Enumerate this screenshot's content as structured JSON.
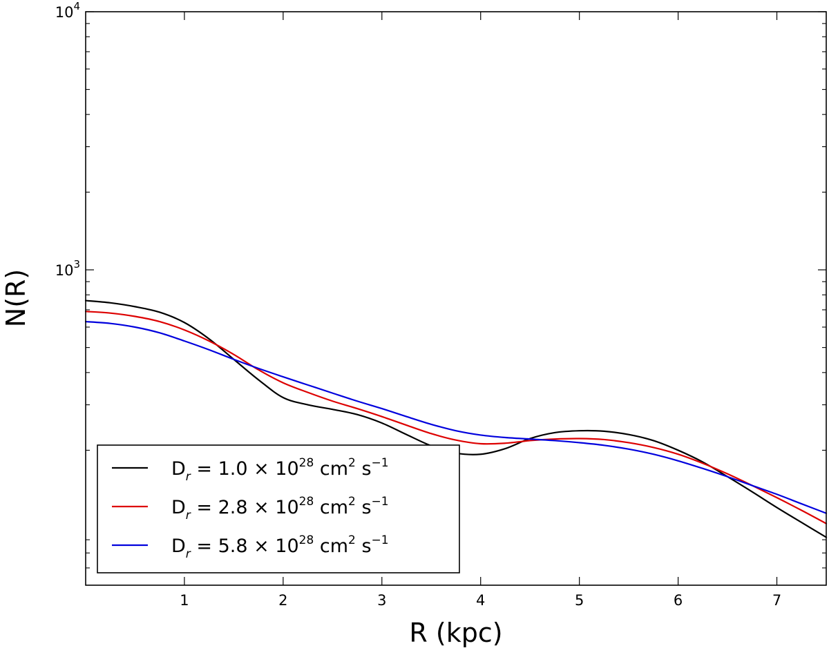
{
  "chart_data": {
    "type": "line",
    "title": "",
    "xlabel": "R (kpc)",
    "ylabel": "N(R)",
    "xlim": [
      0.0,
      7.5
    ],
    "ylim": [
      60,
      10000
    ],
    "yscale": "log",
    "grid": false,
    "legend_position": "lower-left",
    "x_ticks": [
      1,
      2,
      3,
      4,
      5,
      6,
      7
    ],
    "x_tick_labels": [
      "1",
      "2",
      "3",
      "4",
      "5",
      "6",
      "7"
    ],
    "y_major_ticks": [
      {
        "value": 1000,
        "base": "10",
        "exp": "3"
      },
      {
        "value": 10000,
        "base": "10",
        "exp": "4"
      }
    ],
    "y_minor_ticks": [
      70,
      80,
      90,
      200,
      300,
      400,
      500,
      600,
      700,
      800,
      900,
      2000,
      3000,
      4000,
      5000,
      6000,
      7000,
      8000,
      9000
    ],
    "series": [
      {
        "name": "D_r = 1.0 ×10^28 cm^2 s^-1",
        "label_parts": {
          "value": "1.0",
          "exp": "28"
        },
        "color": "#000000",
        "x": [
          0.0,
          0.25,
          0.5,
          0.75,
          1.0,
          1.25,
          1.5,
          1.75,
          2.0,
          2.25,
          2.5,
          2.75,
          3.0,
          3.25,
          3.5,
          3.75,
          4.0,
          4.25,
          4.5,
          4.75,
          5.0,
          5.25,
          5.5,
          5.75,
          6.0,
          6.25,
          6.5,
          6.75,
          7.0,
          7.25,
          7.5
        ],
        "y": [
          760,
          745,
          720,
          685,
          625,
          540,
          450,
          375,
          320,
          300,
          288,
          275,
          255,
          230,
          208,
          195,
          193,
          203,
          222,
          234,
          238,
          237,
          230,
          218,
          200,
          180,
          158,
          138,
          120,
          105,
          92
        ]
      },
      {
        "name": "D_r = 2.8 ×10^28 cm^2 s^-1",
        "label_parts": {
          "value": "2.8",
          "exp": "28"
        },
        "color": "#dd0000",
        "x": [
          0.0,
          0.25,
          0.5,
          0.75,
          1.0,
          1.25,
          1.5,
          1.75,
          2.0,
          2.25,
          2.5,
          2.75,
          3.0,
          3.25,
          3.5,
          3.75,
          4.0,
          4.25,
          4.5,
          4.75,
          5.0,
          5.25,
          5.5,
          5.75,
          6.0,
          6.25,
          6.5,
          6.75,
          7.0,
          7.25,
          7.5
        ],
        "y": [
          690,
          680,
          660,
          630,
          585,
          530,
          470,
          410,
          365,
          335,
          310,
          290,
          270,
          250,
          232,
          219,
          212,
          213,
          218,
          221,
          222,
          220,
          214,
          205,
          193,
          178,
          162,
          146,
          131,
          117,
          104
        ]
      },
      {
        "name": "D_r = 5.8 ×10^28 cm^2 s^-1",
        "label_parts": {
          "value": "5.8",
          "exp": "28"
        },
        "color": "#0000dd",
        "x": [
          0.0,
          0.25,
          0.5,
          0.75,
          1.0,
          1.25,
          1.5,
          1.75,
          2.0,
          2.25,
          2.5,
          2.75,
          3.0,
          3.25,
          3.5,
          3.75,
          4.0,
          4.25,
          4.5,
          4.75,
          5.0,
          5.25,
          5.5,
          5.75,
          6.0,
          6.25,
          6.5,
          6.75,
          7.0,
          7.25,
          7.5
        ],
        "y": [
          630,
          620,
          600,
          570,
          530,
          490,
          450,
          415,
          385,
          358,
          333,
          310,
          290,
          270,
          252,
          238,
          229,
          224,
          221,
          218,
          214,
          209,
          202,
          193,
          182,
          170,
          158,
          146,
          135,
          124,
          114
        ]
      }
    ]
  }
}
